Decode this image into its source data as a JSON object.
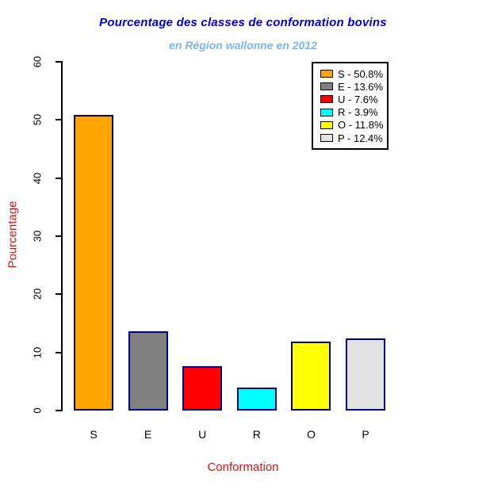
{
  "colors": {
    "title": "#0000CD",
    "subtitle": "#7DB6E2",
    "axis_labels": "#CC1414",
    "bar_border": "#000080",
    "axis_line": "#000000",
    "legend_border": "#000000"
  },
  "chart_data": {
    "type": "bar",
    "title": "Pourcentage des classes de conformation bovins",
    "subtitle": "en Région wallonne en 2012",
    "xlabel": "Conformation",
    "ylabel": "Pourcentage",
    "categories": [
      "S",
      "E",
      "U",
      "R",
      "O",
      "P"
    ],
    "values": [
      50.8,
      13.6,
      7.6,
      3.9,
      11.8,
      12.4
    ],
    "bar_colors": [
      "#FFA500",
      "#808080",
      "#FF0000",
      "#00FFFF",
      "#FFFF00",
      "#E3E3E3"
    ],
    "ylim": [
      0,
      60
    ],
    "yticks": [
      0,
      10,
      20,
      30,
      40,
      50,
      60
    ],
    "grid": false,
    "legend": {
      "position": "top-right",
      "entries": [
        {
          "label": "S - 50.8%",
          "color": "#FFA500"
        },
        {
          "label": "E - 13.6%",
          "color": "#808080"
        },
        {
          "label": "U - 7.6%",
          "color": "#FF0000"
        },
        {
          "label": "R - 3.9%",
          "color": "#00FFFF"
        },
        {
          "label": "O - 11.8%",
          "color": "#FFFF00"
        },
        {
          "label": "P - 12.4%",
          "color": "#E3E3E3"
        }
      ]
    }
  }
}
